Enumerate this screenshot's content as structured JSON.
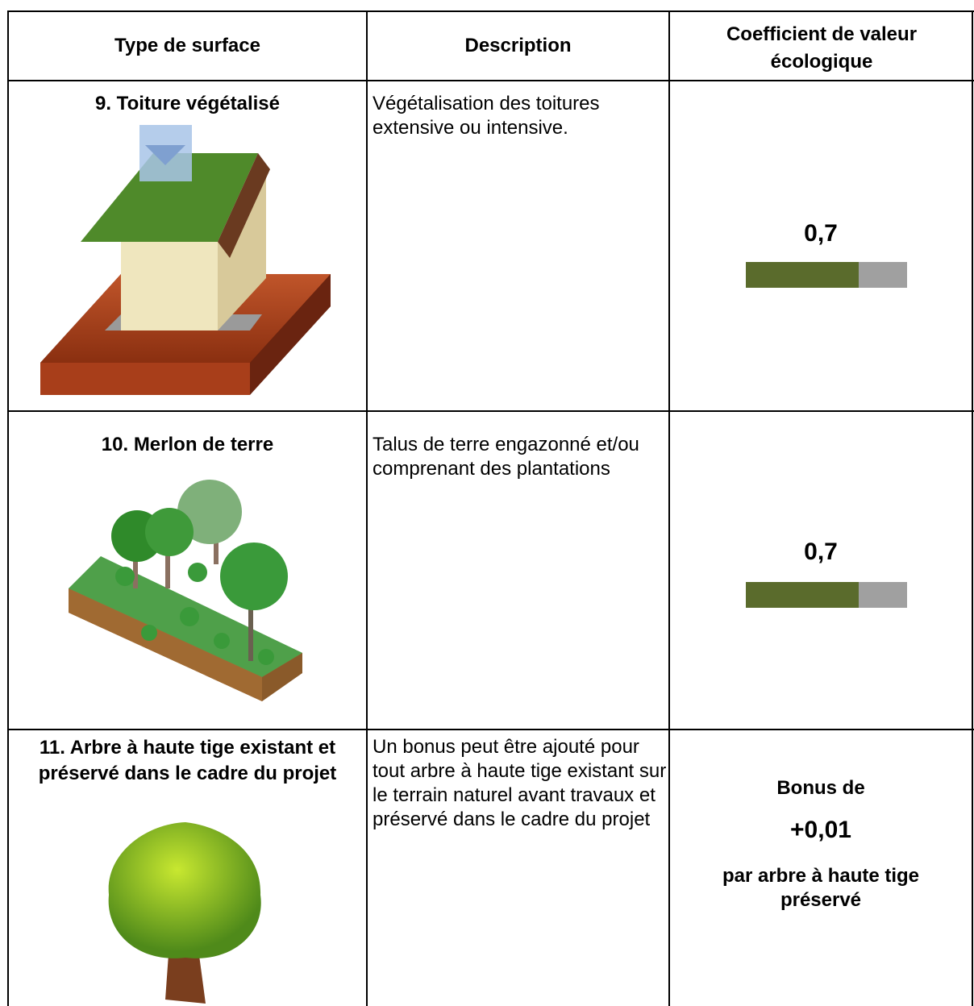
{
  "table": {
    "header": [
      "Type de surface",
      "Description",
      "Coefficient de valeur écologique"
    ],
    "rows": [
      {
        "type": "9. Toiture végétalisé",
        "description": "Végétalisation des toitures extensive ou intensive.",
        "coefficient": {
          "value": 0.7,
          "label": "0,7"
        }
      },
      {
        "type": "10. Merlon de terre",
        "description": "Talus de terre engazonné et/ou comprenant des plantations",
        "coefficient": {
          "value": 0.7,
          "label": "0,7"
        }
      },
      {
        "type": "11. Arbre à haute tige existant et préservé dans le cadre du projet",
        "description": "Un bonus peut être ajouté pour tout arbre à haute tige existant sur le terrain naturel avant travaux et préservé dans le cadre du projet",
        "bonus": [
          "Bonus de",
          "+0,01",
          "par arbre à haute tige préservé"
        ]
      }
    ]
  }
}
